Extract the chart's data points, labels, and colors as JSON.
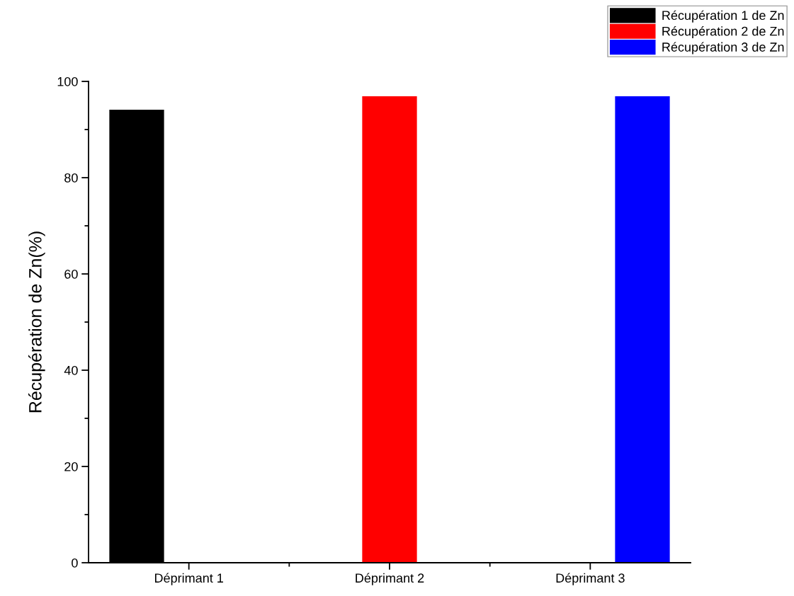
{
  "chart_data": {
    "type": "bar",
    "ylabel": "Récupération de Zn(%)",
    "categories": [
      "Déprimant 1",
      "Déprimant 2",
      "Déprimant 3"
    ],
    "series": [
      {
        "name": "Récupération 1 de Zn",
        "color": "#000000",
        "values": [
          94,
          null,
          null
        ]
      },
      {
        "name": "Récupération 2 de Zn",
        "color": "#ff0000",
        "values": [
          null,
          96.8,
          null
        ]
      },
      {
        "name": "Récupération 3 de Zn",
        "color": "#0000ff",
        "values": [
          null,
          null,
          96.8
        ]
      }
    ],
    "ylim": [
      0,
      100
    ],
    "yticks": [
      0,
      20,
      40,
      60,
      80,
      100
    ],
    "grid": false,
    "legend": "top right"
  }
}
